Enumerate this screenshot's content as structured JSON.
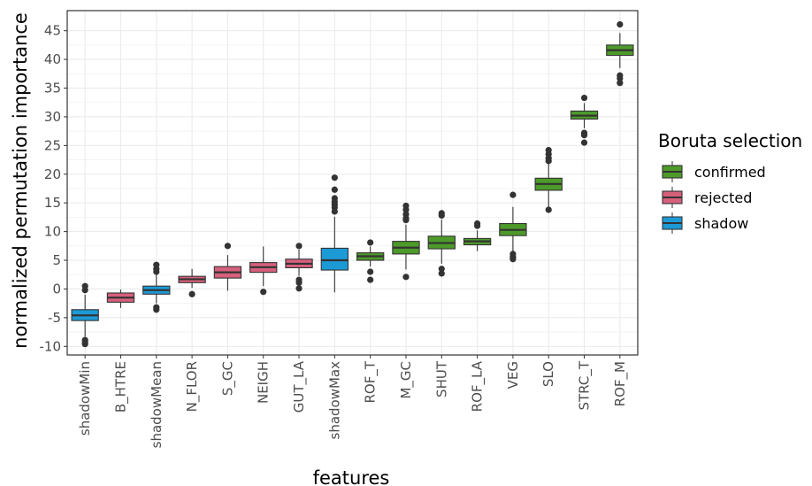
{
  "chart_data": {
    "type": "boxplot",
    "xlabel": "features",
    "ylabel": "normalized permutation importance",
    "ylim": [
      -11.5,
      48.5
    ],
    "yticks": [
      -10,
      -5,
      0,
      5,
      10,
      15,
      20,
      25,
      30,
      35,
      40,
      45
    ],
    "grid": true,
    "legend": {
      "title": "Boruta selection",
      "position": "right",
      "entries": [
        {
          "name": "confirmed",
          "color": "#4d9a2a"
        },
        {
          "name": "rejected",
          "color": "#d6607c"
        },
        {
          "name": "shadow",
          "color": "#1c9ad6"
        }
      ]
    },
    "categories": [
      "shadowMin",
      "B_HTRE",
      "shadowMean",
      "N_FLOR",
      "S_GC",
      "NEIGH",
      "GUT_LA",
      "shadowMax",
      "ROF_T",
      "M_GC",
      "SHUT",
      "ROF_LA",
      "VEG",
      "SLO",
      "STRC_T",
      "ROF_M"
    ],
    "boxes": [
      {
        "feature": "shadowMin",
        "group": "shadow",
        "whisker_low": -8.3,
        "q1": -5.5,
        "median": -4.6,
        "q3": -3.6,
        "whisker_high": -1.0,
        "outliers": [
          0.5,
          -0.2,
          -8.9,
          -9.3,
          -9.6
        ]
      },
      {
        "feature": "B_HTRE",
        "group": "rejected",
        "whisker_low": -3.3,
        "q1": -2.3,
        "median": -1.5,
        "q3": -0.7,
        "whisker_high": -0.1,
        "outliers": []
      },
      {
        "feature": "shadowMean",
        "group": "shadow",
        "whisker_low": -2.5,
        "q1": -0.9,
        "median": -0.2,
        "q3": 0.5,
        "whisker_high": 2.5,
        "outliers": [
          4.2,
          3.5,
          3.0,
          -3.2,
          -3.6
        ]
      },
      {
        "feature": "N_FLOR",
        "group": "rejected",
        "whisker_low": 0.2,
        "q1": 1.1,
        "median": 1.7,
        "q3": 2.2,
        "whisker_high": 3.5,
        "outliers": [
          -0.9
        ]
      },
      {
        "feature": "S_GC",
        "group": "rejected",
        "whisker_low": -0.3,
        "q1": 1.9,
        "median": 2.9,
        "q3": 3.9,
        "whisker_high": 5.9,
        "outliers": [
          7.5
        ]
      },
      {
        "feature": "NEIGH",
        "group": "rejected",
        "whisker_low": 0.5,
        "q1": 2.9,
        "median": 3.8,
        "q3": 4.6,
        "whisker_high": 7.4,
        "outliers": [
          -0.5
        ]
      },
      {
        "feature": "GUT_LA",
        "group": "rejected",
        "whisker_low": 2.3,
        "q1": 3.7,
        "median": 4.4,
        "q3": 5.2,
        "whisker_high": 6.9,
        "outliers": [
          7.5,
          1.6,
          1.1,
          0.1
        ]
      },
      {
        "feature": "shadowMax",
        "group": "shadow",
        "whisker_low": -0.6,
        "q1": 3.3,
        "median": 5.0,
        "q3": 7.1,
        "whisker_high": 12.6,
        "outliers": [
          19.4,
          17.3,
          15.8,
          15.2,
          14.7,
          14.2,
          13.5
        ]
      },
      {
        "feature": "ROF_T",
        "group": "confirmed",
        "whisker_low": 3.9,
        "q1": 5.0,
        "median": 5.7,
        "q3": 6.3,
        "whisker_high": 7.4,
        "outliers": [
          8.1,
          3.0,
          1.6
        ]
      },
      {
        "feature": "M_GC",
        "group": "confirmed",
        "whisker_low": 3.4,
        "q1": 6.1,
        "median": 7.2,
        "q3": 8.3,
        "whisker_high": 11.2,
        "outliers": [
          14.5,
          13.8,
          13.0,
          12.3,
          12.0,
          2.1
        ]
      },
      {
        "feature": "SHUT",
        "group": "confirmed",
        "whisker_low": 4.4,
        "q1": 7.0,
        "median": 8.0,
        "q3": 9.2,
        "whisker_high": 12.1,
        "outliers": [
          13.2,
          12.8,
          3.5,
          2.7
        ]
      },
      {
        "feature": "ROF_LA",
        "group": "confirmed",
        "whisker_low": 6.6,
        "q1": 7.7,
        "median": 8.3,
        "q3": 8.8,
        "whisker_high": 10.2,
        "outliers": [
          11.4,
          11.0
        ]
      },
      {
        "feature": "VEG",
        "group": "confirmed",
        "whisker_low": 6.5,
        "q1": 9.3,
        "median": 10.3,
        "q3": 11.4,
        "whisker_high": 14.3,
        "outliers": [
          16.4,
          6.1,
          5.6,
          5.2
        ]
      },
      {
        "feature": "SLO",
        "group": "confirmed",
        "whisker_low": 14.2,
        "q1": 17.2,
        "median": 18.3,
        "q3": 19.3,
        "whisker_high": 21.8,
        "outliers": [
          24.2,
          23.5,
          22.8,
          22.3,
          13.8
        ]
      },
      {
        "feature": "STRC_T",
        "group": "confirmed",
        "whisker_low": 28.0,
        "q1": 29.6,
        "median": 30.2,
        "q3": 31.0,
        "whisker_high": 32.4,
        "outliers": [
          33.3,
          27.2,
          26.8,
          25.5
        ]
      },
      {
        "feature": "ROF_M",
        "group": "confirmed",
        "whisker_low": 38.5,
        "q1": 40.7,
        "median": 41.6,
        "q3": 42.5,
        "whisker_high": 44.6,
        "outliers": [
          46.1,
          37.2,
          36.7,
          35.9
        ]
      }
    ]
  }
}
